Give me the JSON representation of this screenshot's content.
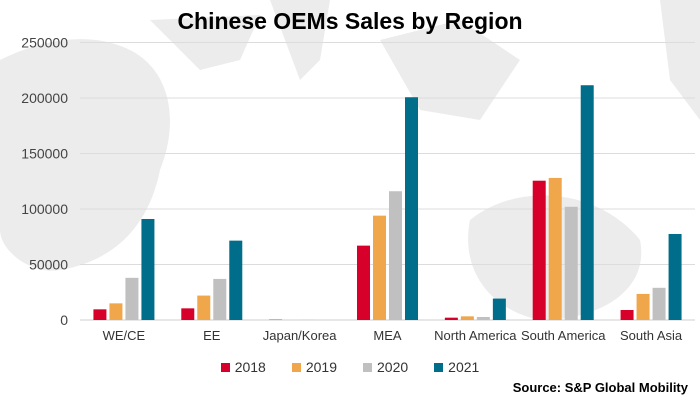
{
  "chart_data": {
    "type": "bar",
    "title": "Chinese OEMs Sales by Region",
    "xlabel": "",
    "ylabel": "",
    "ylim": [
      0,
      250000
    ],
    "yticks": [
      "0",
      "50000",
      "100000",
      "150000",
      "200000",
      "250000"
    ],
    "grid": true,
    "legend_position": "bottom",
    "categories": [
      "WE/CE",
      "EE",
      "Japan/Korea",
      "MEA",
      "North America",
      "South America",
      "South Asia"
    ],
    "series": [
      {
        "name": "2018",
        "color": "#d7002b",
        "values": [
          9600,
          10500,
          300,
          67000,
          2100,
          125500,
          9000
        ]
      },
      {
        "name": "2019",
        "color": "#f0a64a",
        "values": [
          15000,
          22000,
          0,
          94000,
          3300,
          128000,
          23500
        ]
      },
      {
        "name": "2020",
        "color": "#c0c0c0",
        "values": [
          38000,
          37000,
          200,
          116000,
          2700,
          102000,
          29000
        ]
      },
      {
        "name": "2021",
        "color": "#006e8a",
        "values": [
          91000,
          71500,
          0,
          200700,
          19300,
          211500,
          77500
        ]
      }
    ],
    "source": "Source: S&P Global Mobility"
  }
}
